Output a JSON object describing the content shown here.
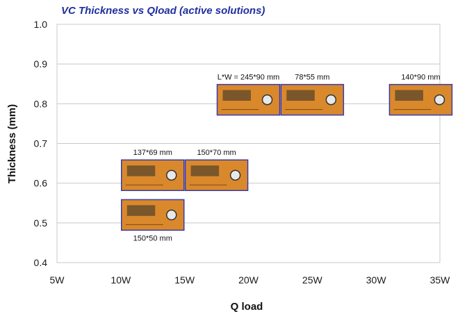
{
  "chart_data": {
    "type": "scatter",
    "title": "VC Thickness vs Qload (active solutions)",
    "xlabel": "Q load",
    "ylabel": "Thickness (mm)",
    "x_ticks": [
      "5W",
      "10W",
      "15W",
      "20W",
      "25W",
      "30W",
      "35W"
    ],
    "xlim": [
      5,
      35
    ],
    "ylim": [
      0.4,
      1.0
    ],
    "y_ticks": [
      "0.4",
      "0.5",
      "0.6",
      "0.7",
      "0.8",
      "0.9",
      "1.0"
    ],
    "grid": true,
    "points": [
      {
        "x": 12.5,
        "y": 0.52,
        "label": "150*50 mm",
        "label_pos": "below"
      },
      {
        "x": 12.5,
        "y": 0.62,
        "label": "137*69 mm",
        "label_pos": "above"
      },
      {
        "x": 17.5,
        "y": 0.62,
        "label": "150*70 mm",
        "label_pos": "above"
      },
      {
        "x": 20.0,
        "y": 0.81,
        "label": "L*W = 245*90 mm",
        "label_pos": "above"
      },
      {
        "x": 25.0,
        "y": 0.81,
        "label": "78*55 mm",
        "label_pos": "above"
      },
      {
        "x": 33.5,
        "y": 0.81,
        "label": "140*90 mm",
        "label_pos": "above"
      }
    ],
    "colors": {
      "title": "#1f2f9f",
      "gridline": "#c8c8c8",
      "thumb_border": "#3a3aa8",
      "thumb_fill": "#d9892c",
      "thumb_dark": "#2b2b2b"
    }
  }
}
